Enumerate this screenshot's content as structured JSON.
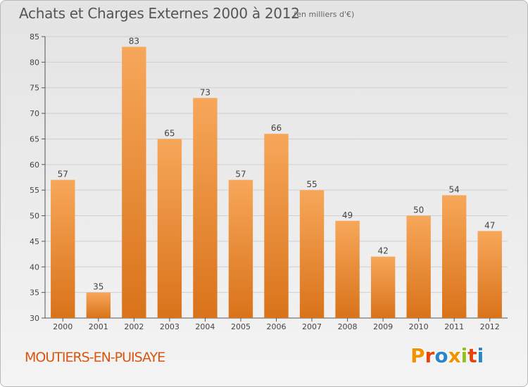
{
  "header": {
    "title": "Achats et Charges Externes 2000 à 2012",
    "subtitle": "(en milliers d'€)"
  },
  "footer": {
    "city": "MOUTIERS-EN-PUISAYE",
    "logo_text": "Proxiti",
    "logo_colors": [
      "#f39200",
      "#e8430c",
      "#2b86c6",
      "#f39200",
      "#95c11f",
      "#e8430c",
      "#2b86c6"
    ]
  },
  "colors": {
    "bar_top": "#f7a75a",
    "bar_bottom": "#d9731a",
    "city": "#d8560f",
    "grid": "#cfcfcf"
  },
  "chart_data": {
    "type": "bar",
    "categories": [
      "2000",
      "2001",
      "2002",
      "2003",
      "2004",
      "2005",
      "2006",
      "2007",
      "2008",
      "2009",
      "2010",
      "2011",
      "2012"
    ],
    "values": [
      57,
      35,
      83,
      65,
      73,
      57,
      66,
      55,
      49,
      42,
      50,
      54,
      47
    ],
    "title": "Achats et Charges Externes 2000 à 2012",
    "subtitle": "(en milliers d'€)",
    "xlabel": "",
    "ylabel": "",
    "ylim": [
      30,
      85
    ],
    "yticks": [
      30,
      35,
      40,
      45,
      50,
      55,
      60,
      65,
      70,
      75,
      80,
      85
    ],
    "grid": true,
    "data_labels": true
  }
}
